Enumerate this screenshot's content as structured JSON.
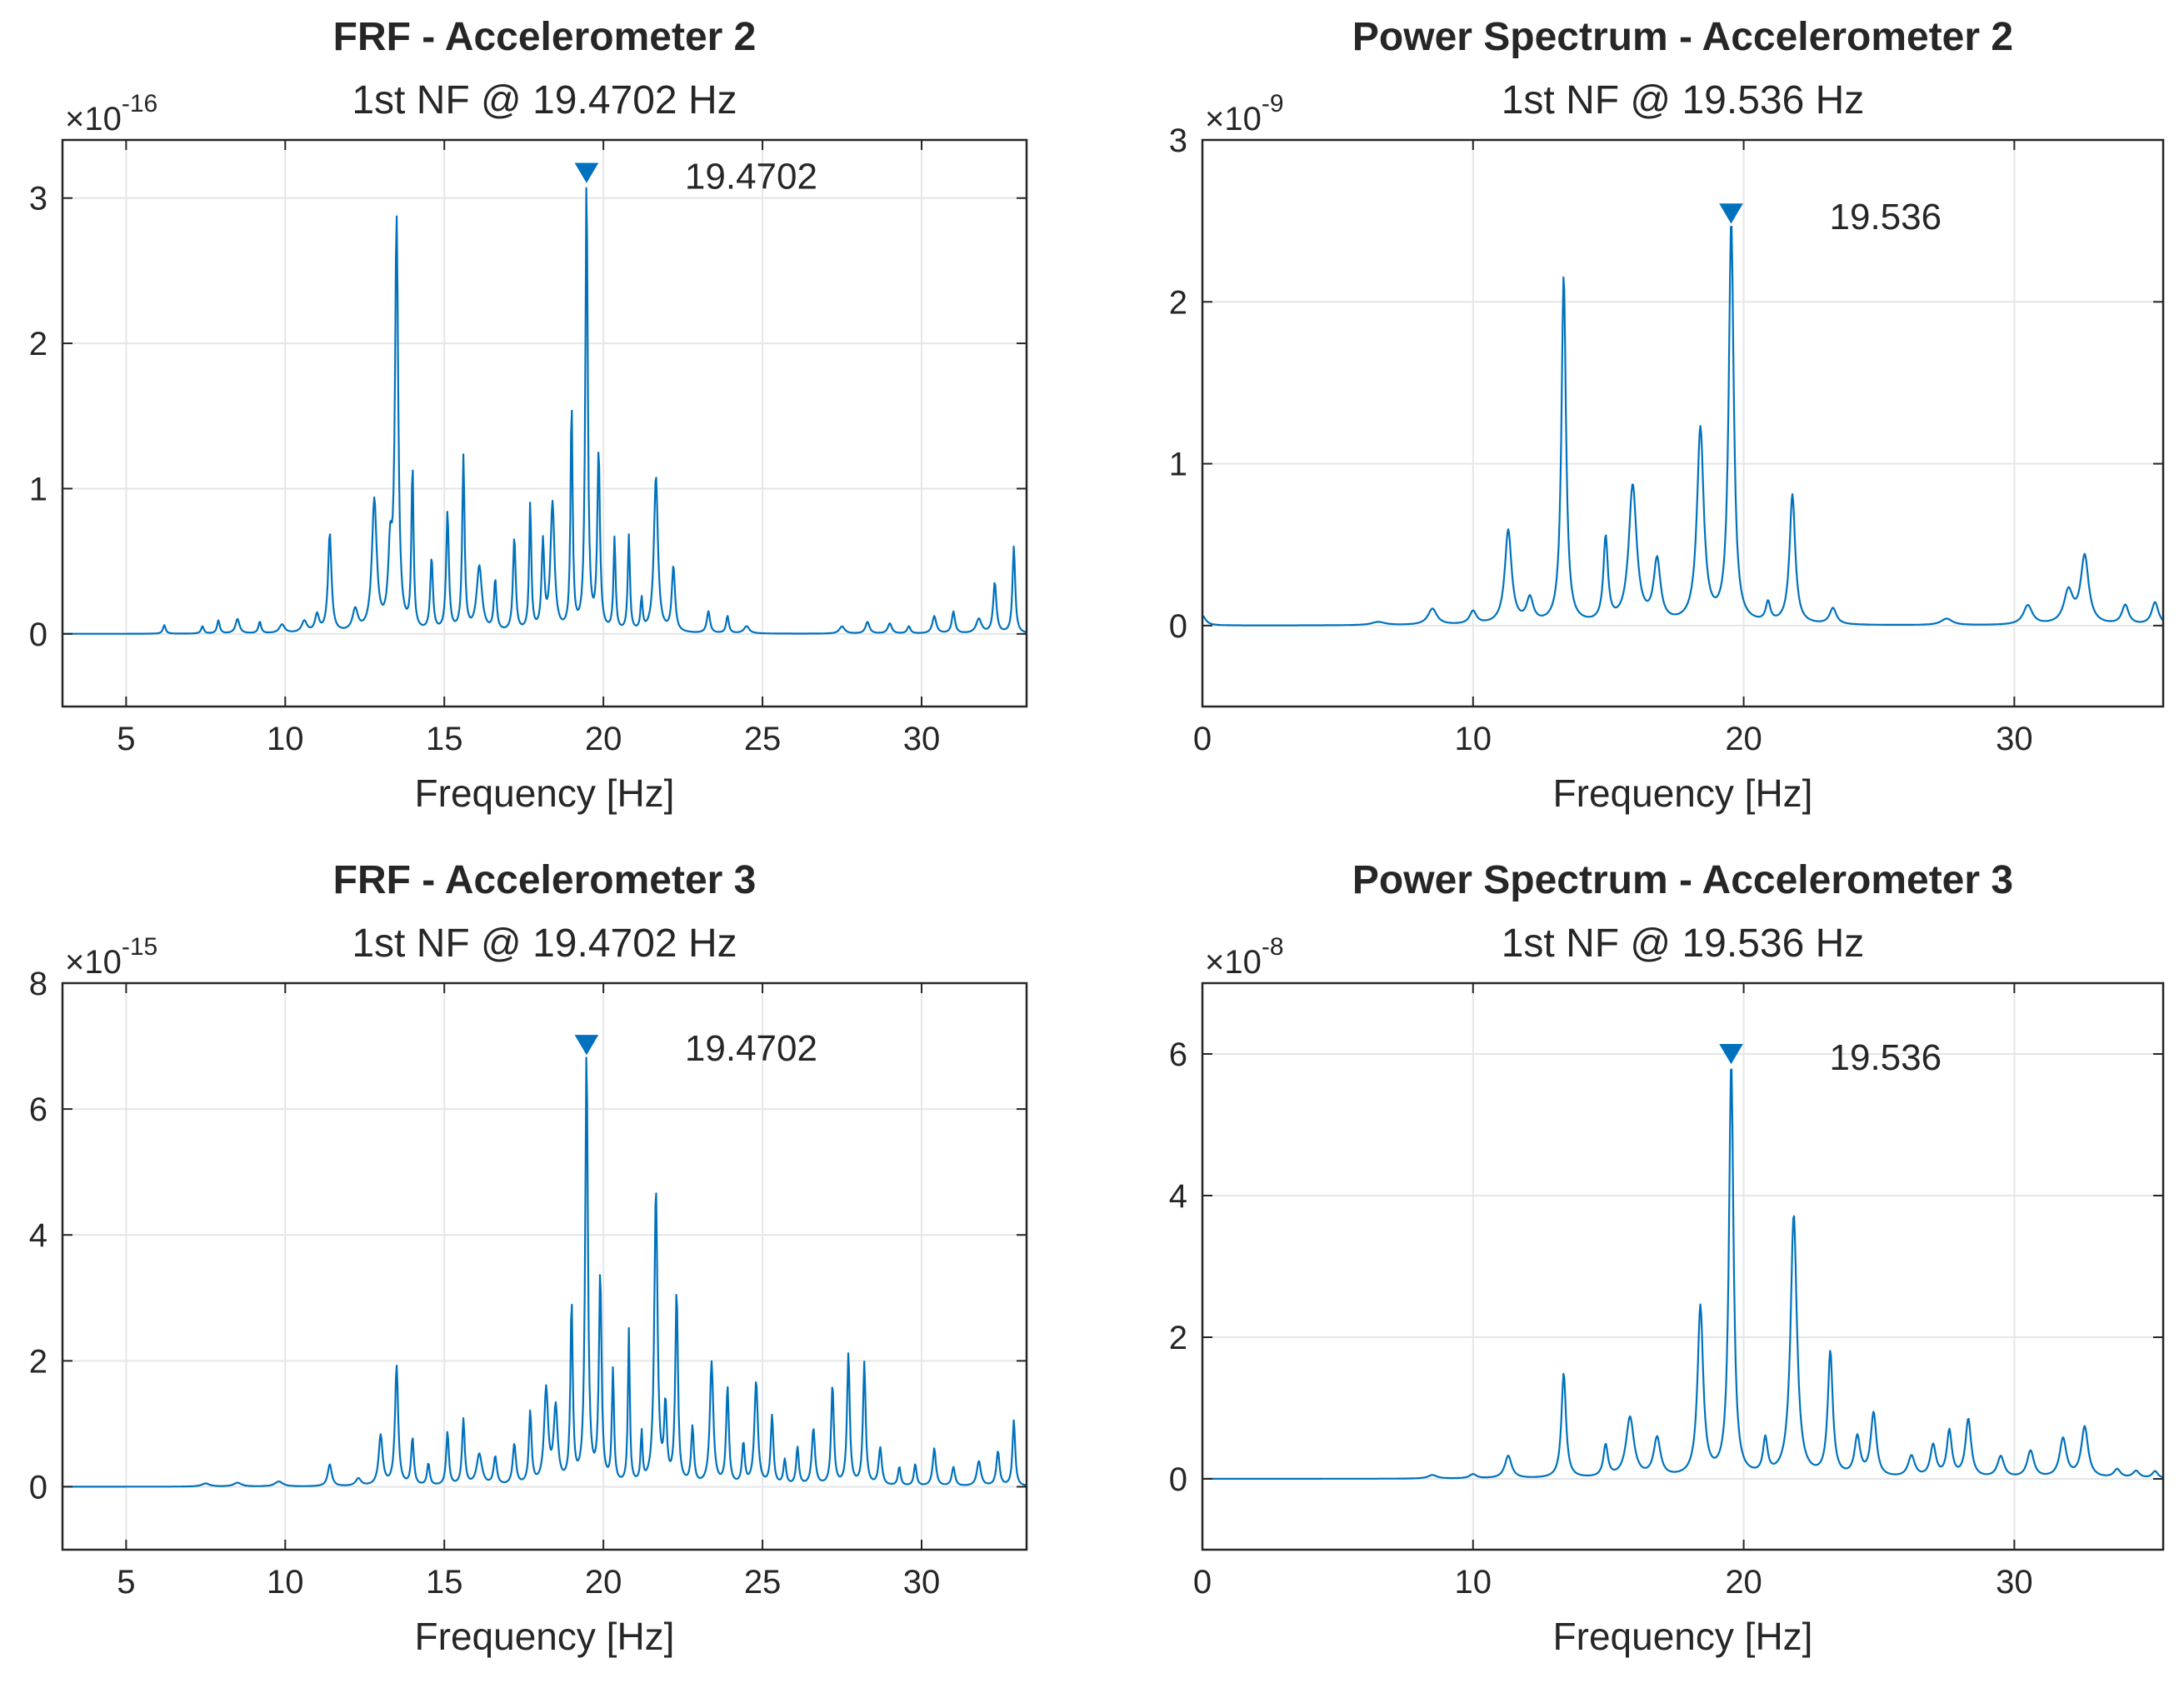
{
  "figure": {
    "layout": "2x2 grid",
    "line_color": "#0072BD",
    "grid_color": "#e6e6e6",
    "axis_color": "#262626"
  },
  "chart_data": [
    {
      "id": "frf-acc2",
      "type": "line",
      "title": "FRF - Accelerometer 2",
      "subtitle": "1st NF @ 19.4702 Hz",
      "xlabel": "Frequency [Hz]",
      "ylabel": "",
      "y_exponent_label": "×10",
      "y_exponent": "-16",
      "xlim": [
        3,
        33.3
      ],
      "ylim": [
        -0.5,
        3.4
      ],
      "xticks": [
        5,
        10,
        15,
        20,
        25,
        30
      ],
      "xtick_labels": [
        "5",
        "10",
        "15",
        "20",
        "25",
        "30"
      ],
      "yticks": [
        0,
        1,
        2,
        3
      ],
      "ytick_labels": [
        "0",
        "1",
        "2",
        "3"
      ],
      "grid": true,
      "baseline": 0,
      "range": [
        3,
        33.3
      ],
      "peaks": [
        [
          6.2,
          0.06,
          0.1
        ],
        [
          7.4,
          0.05,
          0.1
        ],
        [
          7.9,
          0.09,
          0.1
        ],
        [
          8.5,
          0.1,
          0.15
        ],
        [
          9.2,
          0.08,
          0.1
        ],
        [
          9.9,
          0.06,
          0.2
        ],
        [
          10.6,
          0.08,
          0.2
        ],
        [
          11.4,
          0.68,
          0.13
        ],
        [
          11.0,
          0.12,
          0.15
        ],
        [
          12.2,
          0.15,
          0.2
        ],
        [
          12.8,
          0.9,
          0.18
        ],
        [
          13.5,
          2.8,
          0.12
        ],
        [
          13.3,
          0.5,
          0.15
        ],
        [
          14.0,
          1.12,
          0.08
        ],
        [
          14.6,
          0.5,
          0.1
        ],
        [
          15.1,
          0.82,
          0.1
        ],
        [
          15.6,
          1.2,
          0.09
        ],
        [
          16.1,
          0.45,
          0.2
        ],
        [
          16.6,
          0.35,
          0.1
        ],
        [
          17.2,
          0.65,
          0.1
        ],
        [
          17.7,
          0.88,
          0.08
        ],
        [
          18.1,
          0.6,
          0.1
        ],
        [
          18.4,
          0.88,
          0.15
        ],
        [
          19.0,
          1.55,
          0.08
        ],
        [
          19.47,
          3.1,
          0.09
        ],
        [
          19.85,
          1.22,
          0.1
        ],
        [
          20.35,
          0.64,
          0.08
        ],
        [
          20.8,
          0.66,
          0.08
        ],
        [
          21.2,
          0.22,
          0.08
        ],
        [
          21.65,
          1.08,
          0.15
        ],
        [
          22.2,
          0.45,
          0.12
        ],
        [
          23.3,
          0.15,
          0.12
        ],
        [
          23.9,
          0.12,
          0.1
        ],
        [
          24.5,
          0.05,
          0.2
        ],
        [
          27.5,
          0.05,
          0.2
        ],
        [
          28.3,
          0.08,
          0.15
        ],
        [
          29.0,
          0.07,
          0.15
        ],
        [
          29.6,
          0.05,
          0.12
        ],
        [
          30.4,
          0.12,
          0.15
        ],
        [
          31.0,
          0.15,
          0.12
        ],
        [
          31.8,
          0.1,
          0.2
        ],
        [
          32.3,
          0.35,
          0.12
        ],
        [
          32.9,
          0.6,
          0.1
        ]
      ],
      "marker": {
        "x": 19.4702,
        "y": 3.1
      },
      "annotation": "19.4702"
    },
    {
      "id": "ps-acc2",
      "type": "line",
      "title": "Power Spectrum - Accelerometer 2",
      "subtitle": "1st NF @ 19.536 Hz",
      "xlabel": "Frequency [Hz]",
      "ylabel": "",
      "y_exponent_label": "×10",
      "y_exponent": "-9",
      "xlim": [
        0,
        35.5
      ],
      "ylim": [
        -0.5,
        3
      ],
      "xticks": [
        0,
        10,
        20,
        30
      ],
      "xtick_labels": [
        "0",
        "10",
        "20",
        "30"
      ],
      "yticks": [
        0,
        1,
        2,
        3
      ],
      "ytick_labels": [
        "0",
        "1",
        "2",
        "3"
      ],
      "grid": true,
      "baseline": 0,
      "range": [
        0,
        35.5
      ],
      "peaks": [
        [
          0,
          0.06,
          0.3
        ],
        [
          6.5,
          0.02,
          0.6
        ],
        [
          8.5,
          0.1,
          0.4
        ],
        [
          10,
          0.08,
          0.3
        ],
        [
          11.3,
          0.58,
          0.3
        ],
        [
          12.1,
          0.15,
          0.3
        ],
        [
          13.35,
          2.15,
          0.2
        ],
        [
          14.9,
          0.52,
          0.2
        ],
        [
          15.9,
          0.85,
          0.35
        ],
        [
          16.8,
          0.38,
          0.3
        ],
        [
          18.4,
          1.2,
          0.3
        ],
        [
          19.54,
          2.48,
          0.22
        ],
        [
          20.9,
          0.12,
          0.2
        ],
        [
          21.8,
          0.8,
          0.25
        ],
        [
          23.3,
          0.1,
          0.3
        ],
        [
          27.5,
          0.04,
          0.5
        ],
        [
          30.5,
          0.12,
          0.4
        ],
        [
          32.0,
          0.2,
          0.4
        ],
        [
          32.6,
          0.42,
          0.35
        ],
        [
          34.1,
          0.12,
          0.3
        ],
        [
          35.2,
          0.14,
          0.3
        ]
      ],
      "marker": {
        "x": 19.536,
        "y": 2.48
      },
      "annotation": "19.536"
    },
    {
      "id": "frf-acc3",
      "type": "line",
      "title": "FRF - Accelerometer 3",
      "subtitle": "1st NF @ 19.4702 Hz",
      "xlabel": "Frequency [Hz]",
      "ylabel": "",
      "y_exponent_label": "×10",
      "y_exponent": "-15",
      "xlim": [
        3,
        33.3
      ],
      "ylim": [
        -1,
        8
      ],
      "xticks": [
        5,
        10,
        15,
        20,
        25,
        30
      ],
      "xtick_labels": [
        "5",
        "10",
        "15",
        "20",
        "25",
        "30"
      ],
      "yticks": [
        0,
        2,
        4,
        6,
        8
      ],
      "ytick_labels": [
        "0",
        "2",
        "4",
        "6",
        "8"
      ],
      "grid": true,
      "baseline": 0,
      "range": [
        3,
        33.3
      ],
      "peaks": [
        [
          7.5,
          0.05,
          0.3
        ],
        [
          8.5,
          0.06,
          0.3
        ],
        [
          9.8,
          0.08,
          0.3
        ],
        [
          11.4,
          0.35,
          0.15
        ],
        [
          12.3,
          0.12,
          0.2
        ],
        [
          13.0,
          0.8,
          0.15
        ],
        [
          13.5,
          1.9,
          0.12
        ],
        [
          14.0,
          0.75,
          0.1
        ],
        [
          14.5,
          0.35,
          0.1
        ],
        [
          15.1,
          0.85,
          0.1
        ],
        [
          15.6,
          1.05,
          0.1
        ],
        [
          16.1,
          0.5,
          0.2
        ],
        [
          16.6,
          0.45,
          0.12
        ],
        [
          17.2,
          0.65,
          0.12
        ],
        [
          17.7,
          1.15,
          0.1
        ],
        [
          18.2,
          1.5,
          0.15
        ],
        [
          18.5,
          1.2,
          0.15
        ],
        [
          19.0,
          2.85,
          0.09
        ],
        [
          19.47,
          6.85,
          0.1
        ],
        [
          19.9,
          3.3,
          0.1
        ],
        [
          20.3,
          1.8,
          0.08
        ],
        [
          20.8,
          2.45,
          0.07
        ],
        [
          21.2,
          0.8,
          0.07
        ],
        [
          21.65,
          4.7,
          0.12
        ],
        [
          21.95,
          1.2,
          0.1
        ],
        [
          22.3,
          3.05,
          0.1
        ],
        [
          22.8,
          0.9,
          0.1
        ],
        [
          23.4,
          1.95,
          0.13
        ],
        [
          23.9,
          1.55,
          0.1
        ],
        [
          24.4,
          0.65,
          0.1
        ],
        [
          24.8,
          1.65,
          0.13
        ],
        [
          25.3,
          1.1,
          0.1
        ],
        [
          25.7,
          0.4,
          0.1
        ],
        [
          26.1,
          0.6,
          0.1
        ],
        [
          26.6,
          0.9,
          0.12
        ],
        [
          27.2,
          1.6,
          0.1
        ],
        [
          27.7,
          2.1,
          0.1
        ],
        [
          28.2,
          1.95,
          0.1
        ],
        [
          28.7,
          0.6,
          0.12
        ],
        [
          29.3,
          0.3,
          0.1
        ],
        [
          29.8,
          0.35,
          0.1
        ],
        [
          30.4,
          0.6,
          0.12
        ],
        [
          31.0,
          0.3,
          0.12
        ],
        [
          31.8,
          0.4,
          0.15
        ],
        [
          32.4,
          0.55,
          0.12
        ],
        [
          32.9,
          1.05,
          0.1
        ]
      ],
      "marker": {
        "x": 19.4702,
        "y": 6.85
      },
      "annotation": "19.4702"
    },
    {
      "id": "ps-acc3",
      "type": "line",
      "title": "Power Spectrum - Accelerometer 3",
      "subtitle": "1st NF @ 19.536 Hz",
      "xlabel": "Frequency [Hz]",
      "ylabel": "",
      "y_exponent_label": "×10",
      "y_exponent": "-8",
      "xlim": [
        0,
        35.5
      ],
      "ylim": [
        -1,
        7
      ],
      "xticks": [
        0,
        10,
        20,
        30
      ],
      "xtick_labels": [
        "0",
        "10",
        "20",
        "30"
      ],
      "yticks": [
        0,
        2,
        4,
        6
      ],
      "ytick_labels": [
        "0",
        "2",
        "4",
        "6"
      ],
      "grid": true,
      "baseline": 0,
      "range": [
        0,
        35.5
      ],
      "peaks": [
        [
          8.5,
          0.05,
          0.4
        ],
        [
          10,
          0.06,
          0.3
        ],
        [
          11.3,
          0.32,
          0.3
        ],
        [
          13.35,
          1.48,
          0.2
        ],
        [
          14.9,
          0.45,
          0.2
        ],
        [
          15.8,
          0.85,
          0.35
        ],
        [
          16.8,
          0.55,
          0.3
        ],
        [
          18.4,
          2.4,
          0.25
        ],
        [
          19.54,
          5.85,
          0.2
        ],
        [
          20.8,
          0.5,
          0.2
        ],
        [
          21.85,
          3.7,
          0.28
        ],
        [
          23.2,
          1.75,
          0.22
        ],
        [
          24.2,
          0.55,
          0.25
        ],
        [
          24.8,
          0.9,
          0.25
        ],
        [
          26.2,
          0.3,
          0.3
        ],
        [
          27.0,
          0.45,
          0.25
        ],
        [
          27.6,
          0.65,
          0.22
        ],
        [
          28.3,
          0.82,
          0.25
        ],
        [
          29.5,
          0.3,
          0.3
        ],
        [
          30.6,
          0.38,
          0.3
        ],
        [
          31.8,
          0.55,
          0.3
        ],
        [
          32.6,
          0.72,
          0.3
        ],
        [
          33.8,
          0.12,
          0.3
        ],
        [
          34.5,
          0.1,
          0.3
        ],
        [
          35.2,
          0.1,
          0.25
        ]
      ],
      "marker": {
        "x": 19.536,
        "y": 5.85
      },
      "annotation": "19.536"
    }
  ]
}
